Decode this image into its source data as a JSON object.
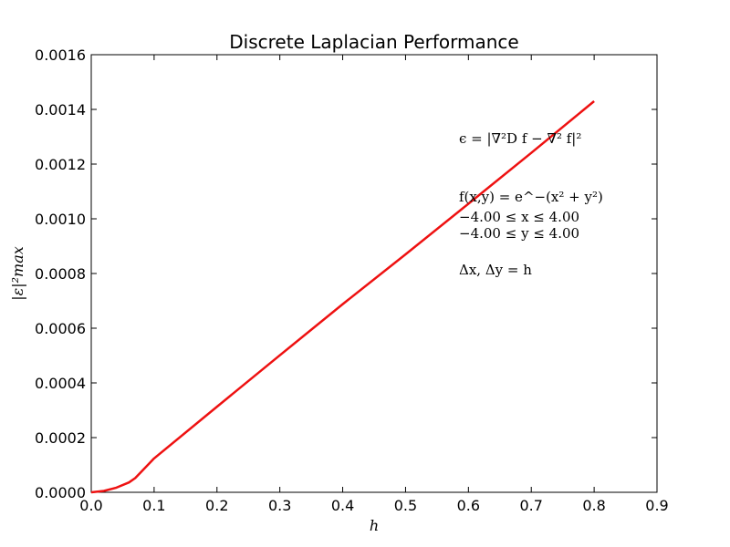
{
  "chart_data": {
    "type": "line",
    "title": "Discrete Laplacian Performance",
    "xlabel": "h",
    "ylabel": "|ε|²max",
    "xlim": [
      0.0,
      0.9
    ],
    "ylim": [
      0.0,
      0.0016
    ],
    "x_ticks": [
      "0.0",
      "0.1",
      "0.2",
      "0.3",
      "0.4",
      "0.5",
      "0.6",
      "0.7",
      "0.8",
      "0.9"
    ],
    "y_ticks": [
      "0.0000",
      "0.0002",
      "0.0004",
      "0.0006",
      "0.0008",
      "0.0010",
      "0.0012",
      "0.0014",
      "0.0016"
    ],
    "grid": false,
    "series": [
      {
        "color": "#ee1111",
        "x": [
          0.0,
          0.02,
          0.04,
          0.06,
          0.07,
          0.1,
          0.2,
          0.3,
          0.4,
          0.5,
          0.6,
          0.7,
          0.8
        ],
        "y": [
          0.0,
          5e-06,
          1.7e-05,
          3.6e-05,
          5.2e-05,
          0.000124,
          0.000313,
          0.000501,
          0.000688,
          0.00087,
          0.001055,
          0.001241,
          0.00143
        ]
      }
    ],
    "annotations": [
      "ϵ = |∇²D f − ∇² f|²",
      "f(x,y) = e^−(x² + y²)",
      "−4.00 ≤ x ≤ 4.00",
      "−4.00 ≤ y ≤ 4.00",
      "Δx, Δy = h"
    ]
  }
}
